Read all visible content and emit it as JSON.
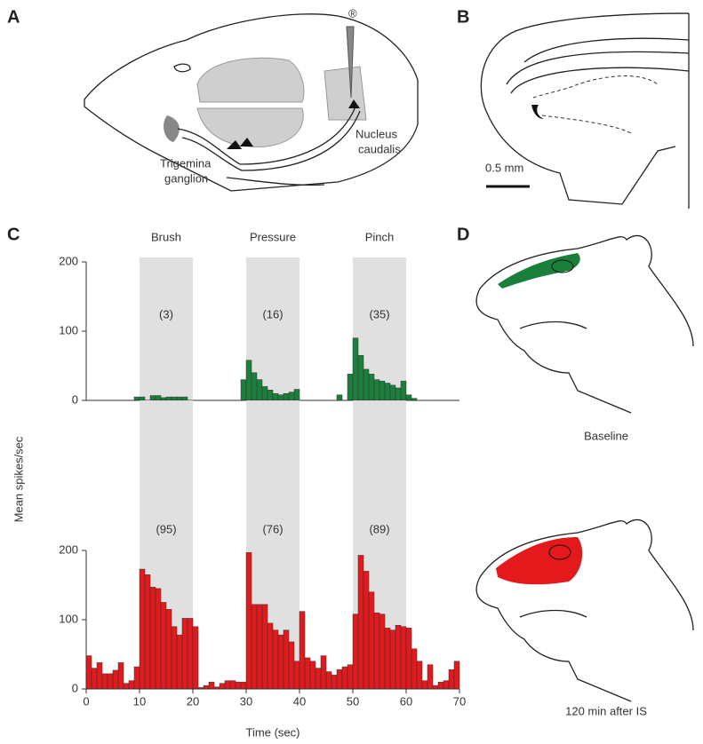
{
  "panels": {
    "a": {
      "letter": "A",
      "ganglion_label": [
        "Trigemina",
        "ganglion"
      ],
      "nucleus_label": [
        "Nucleus",
        "caudalis"
      ],
      "electrode_mark": "®"
    },
    "b": {
      "letter": "B",
      "scale_label": "0.5 mm"
    },
    "c": {
      "letter": "C"
    },
    "d": {
      "letter": "D",
      "top_label": "Baseline",
      "bottom_label": "120 min after IS"
    }
  },
  "chart_data": [
    {
      "type": "histogram",
      "color": "#1b7f3c",
      "bins": [
        0,
        1,
        2,
        3,
        4,
        5,
        6,
        7,
        8,
        9,
        10,
        11,
        12,
        13,
        14,
        15,
        16,
        17,
        18,
        19,
        20,
        21,
        22,
        23,
        24,
        25,
        26,
        27,
        28,
        29,
        30,
        31,
        32,
        33,
        34,
        35,
        36,
        37,
        38,
        39,
        40,
        41,
        42,
        43,
        44,
        45,
        46,
        47,
        48,
        49,
        50,
        51,
        52,
        53,
        54,
        55,
        56,
        57,
        58,
        59,
        60,
        61,
        62,
        63,
        64,
        65,
        66,
        67,
        68,
        69,
        70
      ],
      "values": [
        0,
        0,
        0,
        0,
        0,
        0,
        0,
        0,
        0,
        5,
        5,
        0,
        7,
        7,
        4,
        5,
        5,
        5,
        5,
        0,
        0,
        0,
        0,
        0,
        0,
        0,
        0,
        0,
        0,
        30,
        58,
        40,
        30,
        20,
        15,
        10,
        8,
        10,
        12,
        16,
        0,
        0,
        0,
        0,
        0,
        0,
        0,
        8,
        0,
        38,
        90,
        65,
        45,
        38,
        30,
        28,
        25,
        22,
        18,
        28,
        8,
        3,
        0,
        0,
        0,
        0,
        0,
        0,
        0,
        0
      ],
      "xlim": [
        0,
        70
      ],
      "ylim": [
        0,
        200
      ],
      "yticks": [
        0,
        100,
        200
      ],
      "shaded": [
        [
          10,
          20
        ],
        [
          30,
          40
        ],
        [
          50,
          60
        ]
      ],
      "shaded_color": "#e0e0e0",
      "shaded_titles": [
        "Brush",
        "Pressure",
        "Pinch"
      ],
      "shaded_labels": [
        "(3)",
        "(16)",
        "(35)"
      ]
    },
    {
      "type": "histogram",
      "color": "#e3191c",
      "bins": [
        0,
        1,
        2,
        3,
        4,
        5,
        6,
        7,
        8,
        9,
        10,
        11,
        12,
        13,
        14,
        15,
        16,
        17,
        18,
        19,
        20,
        21,
        22,
        23,
        24,
        25,
        26,
        27,
        28,
        29,
        30,
        31,
        32,
        33,
        34,
        35,
        36,
        37,
        38,
        39,
        40,
        41,
        42,
        43,
        44,
        45,
        46,
        47,
        48,
        49,
        50,
        51,
        52,
        53,
        54,
        55,
        56,
        57,
        58,
        59,
        60,
        61,
        62,
        63,
        64,
        65,
        66,
        67,
        68,
        69,
        70
      ],
      "values": [
        48,
        30,
        38,
        22,
        22,
        27,
        38,
        8,
        12,
        32,
        173,
        165,
        147,
        145,
        125,
        115,
        90,
        78,
        102,
        102,
        90,
        2,
        5,
        10,
        3,
        8,
        12,
        12,
        10,
        10,
        197,
        122,
        122,
        122,
        95,
        85,
        78,
        85,
        68,
        40,
        112,
        45,
        40,
        30,
        48,
        25,
        20,
        28,
        32,
        35,
        108,
        193,
        170,
        140,
        110,
        108,
        88,
        85,
        92,
        90,
        88,
        58,
        40,
        12,
        35,
        5,
        10,
        12,
        28,
        40
      ],
      "xlim": [
        0,
        70
      ],
      "ylim": [
        0,
        200
      ],
      "yticks": [
        0,
        100,
        200
      ],
      "xticks": [
        0,
        10,
        20,
        30,
        40,
        50,
        60,
        70
      ],
      "xlabel": "Time (sec)",
      "ylabel": "Mean spikes/sec",
      "shaded": [
        [
          10,
          20
        ],
        [
          30,
          40
        ],
        [
          50,
          60
        ]
      ],
      "shaded_color": "#e0e0e0",
      "shaded_labels": [
        "(95)",
        "(76)",
        "(89)"
      ]
    }
  ]
}
